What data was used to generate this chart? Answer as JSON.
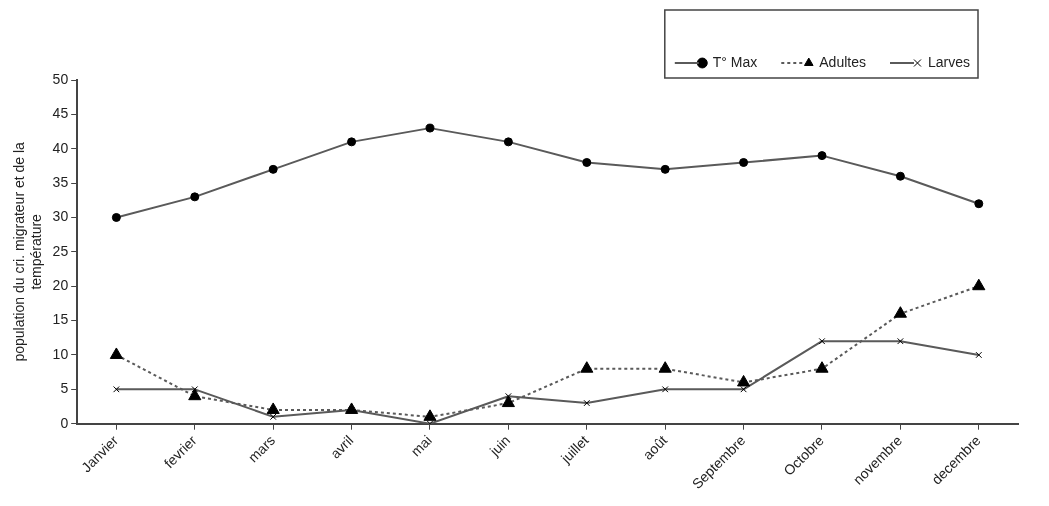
{
  "chart_data": {
    "type": "line",
    "ylabel": "population du cri. migrateur et de la\ntempérature",
    "categories": [
      "Janvier",
      "fevrier",
      "mars",
      "avril",
      "mai",
      "juin",
      "juillet",
      "août",
      "Septembre",
      "Octobre",
      "novembre",
      "decembre"
    ],
    "series": [
      {
        "name": "T° Max",
        "color": "#5a5a5a",
        "marker": "circle",
        "line_style": "solid",
        "values": [
          30,
          33,
          37,
          41,
          43,
          41,
          38,
          37,
          38,
          39,
          36,
          32
        ]
      },
      {
        "name": "Adultes",
        "color": "#5a5a5a",
        "marker": "triangle",
        "line_style": "dotted",
        "values": [
          10,
          4,
          2,
          2,
          1,
          3,
          8,
          8,
          6,
          8,
          16,
          20
        ]
      },
      {
        "name": "Larves",
        "color": "#5a5a5a",
        "marker": "cross",
        "line_style": "solid",
        "values": [
          5,
          5,
          1,
          2,
          0,
          4,
          3,
          5,
          5,
          12,
          12,
          10
        ]
      }
    ],
    "ylim": [
      0,
      50
    ],
    "yticks": [
      0,
      5,
      10,
      15,
      20,
      25,
      30,
      35,
      40,
      45,
      50
    ],
    "grid": false,
    "legend": "top right"
  }
}
